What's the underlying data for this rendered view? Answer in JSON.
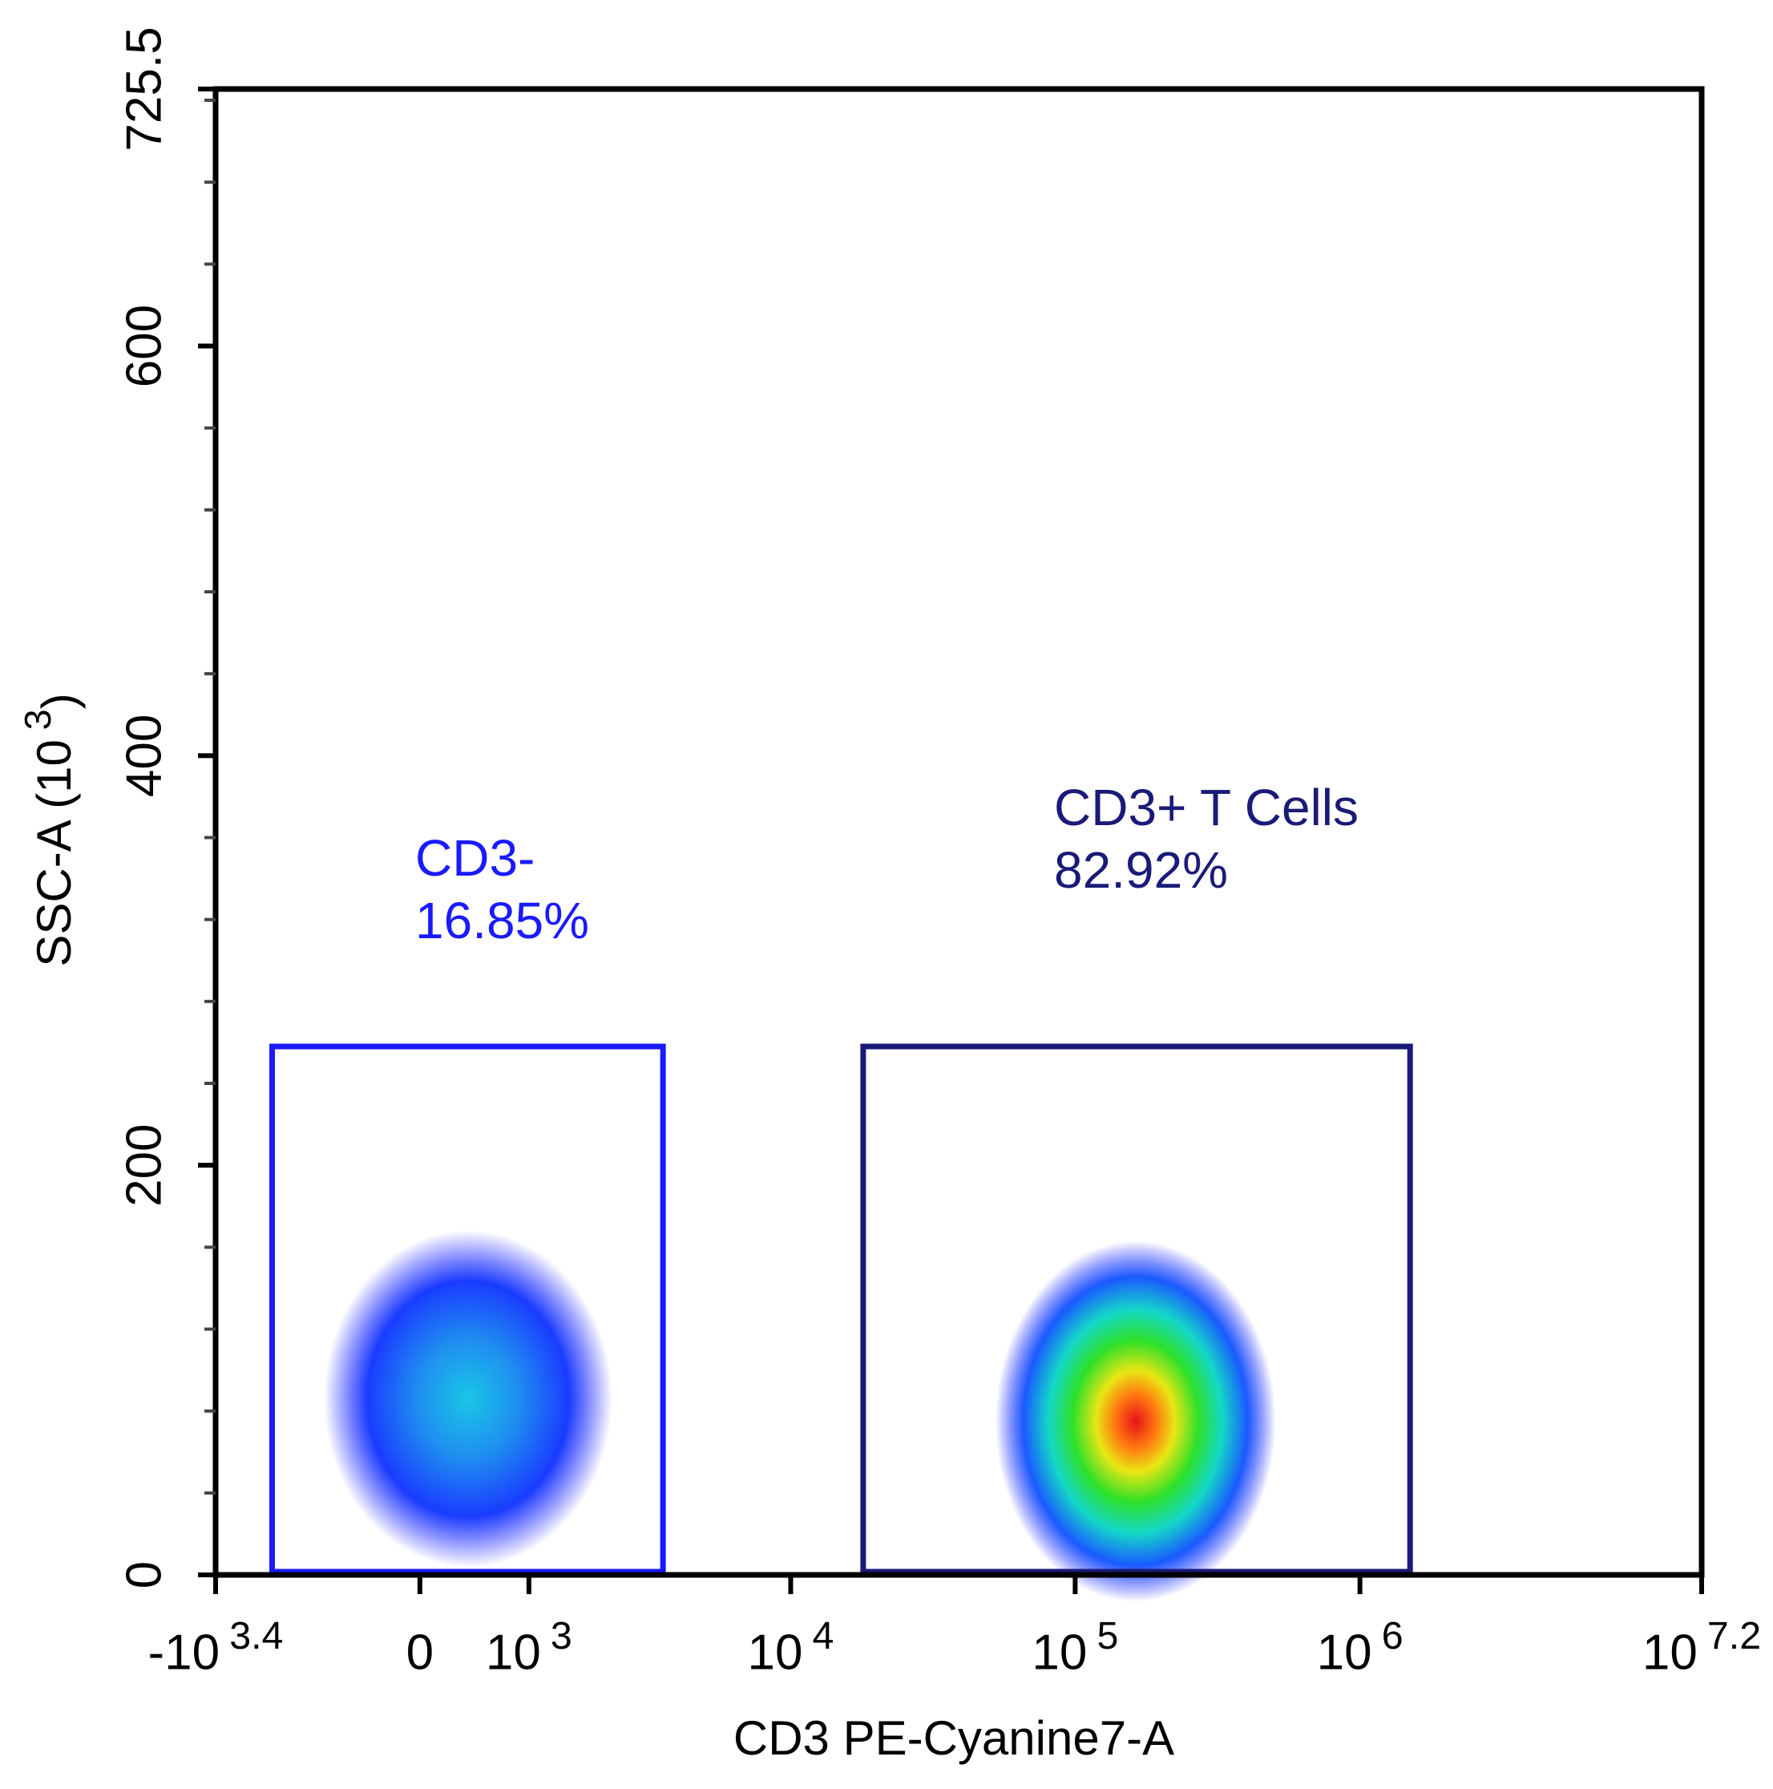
{
  "chart_data": {
    "type": "density-scatter",
    "x_label": "CD3 PE-Cyanine7-A",
    "y_label": "SSC-A (10^{3})",
    "xscale": "biexponential",
    "xlim": [
      -2512,
      15848932
    ],
    "xticks": [
      {
        "value": -2512,
        "label": "-10^{3.4}"
      },
      0,
      {
        "value": 1000,
        "label": "10^{3}"
      },
      {
        "value": 10000,
        "label": "10^{4}"
      },
      {
        "value": 100000,
        "label": "10^{5}"
      },
      {
        "value": 1000000,
        "label": "10^{6}"
      },
      {
        "value": 15848932,
        "label": "10^{7.2}"
      }
    ],
    "ylim": [
      0,
      725.5
    ],
    "yticks": [
      0,
      200,
      400,
      600,
      725.5
    ],
    "yminorticks": [
      40,
      80,
      120,
      160,
      240,
      280,
      320,
      360,
      440,
      480,
      520,
      560,
      640,
      680,
      720
    ],
    "series": [
      {
        "name": "CD3-",
        "color": "#1a1aff",
        "values": [
          16.85
        ],
        "value_labels": [
          "16.85%"
        ],
        "gate_x": [
          -1500,
          3500
        ],
        "gate_y": [
          0,
          258
        ],
        "peak_x": 400,
        "peak_y": 86
      },
      {
        "name": "CD3+ T Cells",
        "color": "#1a1a78",
        "values": [
          82.92
        ],
        "value_labels": [
          "82.92%"
        ],
        "gate_x": [
          18000,
          1500000
        ],
        "gate_y": [
          0,
          258
        ],
        "peak_x": 163000,
        "peak_y": 75
      }
    ]
  }
}
